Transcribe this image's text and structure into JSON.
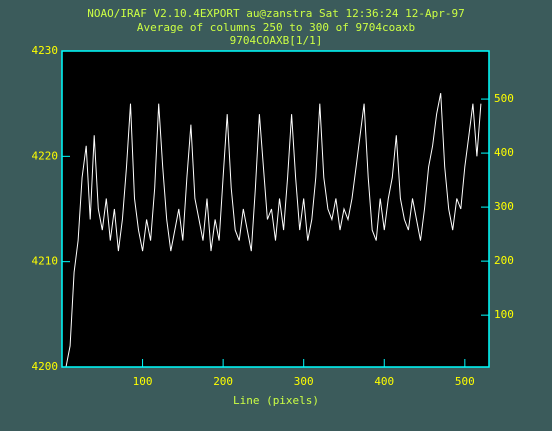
{
  "chart_data": {
    "type": "line",
    "title": "NOAO/IRAF V2.10.4EXPORT au@zanstra Sat 12:36:24 12-Apr-97",
    "subtitle": "Average of columns 250 to 300 of 9704coaxb",
    "image_label": "9704COAXB[1/1]",
    "xlabel": "Line (pixels)",
    "x": [
      5,
      10,
      15,
      20,
      25,
      30,
      35,
      40,
      45,
      50,
      55,
      60,
      65,
      70,
      75,
      80,
      85,
      90,
      95,
      100,
      105,
      110,
      115,
      120,
      125,
      130,
      135,
      140,
      145,
      150,
      155,
      160,
      165,
      170,
      175,
      180,
      185,
      190,
      195,
      200,
      205,
      210,
      215,
      220,
      225,
      230,
      235,
      240,
      245,
      250,
      255,
      260,
      265,
      270,
      275,
      280,
      285,
      290,
      295,
      300,
      305,
      310,
      315,
      320,
      325,
      330,
      335,
      340,
      345,
      350,
      355,
      360,
      365,
      370,
      375,
      380,
      385,
      390,
      395,
      400,
      405,
      410,
      415,
      420,
      425,
      430,
      435,
      440,
      445,
      450,
      455,
      460,
      465,
      470,
      475,
      480,
      485,
      490,
      495,
      500,
      505,
      510,
      515,
      520
    ],
    "series": [
      {
        "color": "#ffffff",
        "values": [
          4200,
          4202,
          4209,
          4212,
          4218,
          4221,
          4214,
          4222,
          4215,
          4213,
          4216,
          4212,
          4215,
          4211,
          4214,
          4219,
          4225,
          4216,
          4213,
          4211,
          4214,
          4212,
          4217,
          4225,
          4219,
          4214,
          4211,
          4213,
          4215,
          4212,
          4218,
          4223,
          4216,
          4214,
          4212,
          4216,
          4211,
          4214,
          4212,
          4218,
          4224,
          4217,
          4213,
          4212,
          4215,
          4213,
          4211,
          4217,
          4224,
          4219,
          4214,
          4215,
          4212,
          4216,
          4213,
          4218,
          4224,
          4218,
          4213,
          4216,
          4212,
          4214,
          4218,
          4225,
          4218,
          4215,
          4214,
          4216,
          4213,
          4215,
          4214,
          4216,
          4219,
          4222,
          4225,
          4218,
          4213,
          4212,
          4216,
          4213,
          4216,
          4218,
          4222,
          4216,
          4214,
          4213,
          4216,
          4214,
          4212,
          4215,
          4219,
          4221,
          4224,
          4226,
          4219,
          4215,
          4213,
          4216,
          4215,
          4219,
          4222,
          4225,
          4220,
          4225
        ]
      }
    ],
    "xlim": [
      0,
      530
    ],
    "xticks": [
      100,
      200,
      300,
      400,
      500
    ],
    "ylim": [
      4200,
      4230
    ],
    "yticks": [
      4200,
      4210,
      4220,
      4230
    ],
    "y2lim": [
      4,
      589
    ],
    "y2ticks": [
      100,
      200,
      300,
      400,
      500
    ],
    "axis_color": "#00ffff",
    "label_color": "#ffff00",
    "title_color": "#ccff44"
  }
}
